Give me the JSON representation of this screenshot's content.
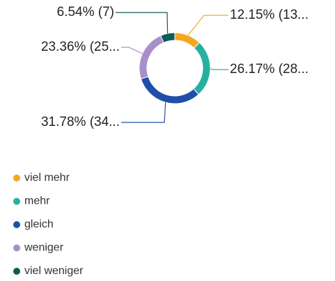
{
  "chart_data": {
    "type": "pie",
    "donut": true,
    "categories": [
      "viel mehr",
      "mehr",
      "gleich",
      "weniger",
      "viel weniger"
    ],
    "values": [
      12.15,
      26.17,
      31.78,
      23.36,
      6.54
    ],
    "value_labels": [
      "12.15% (13...",
      "26.17% (28...",
      "31.78% (34...",
      "23.36% (25...",
      "6.54% (7)"
    ],
    "colors": [
      "#f5a623",
      "#26b0a0",
      "#1f4fa8",
      "#a98fc9",
      "#0d5c56"
    ],
    "legend": "bottom-left"
  }
}
